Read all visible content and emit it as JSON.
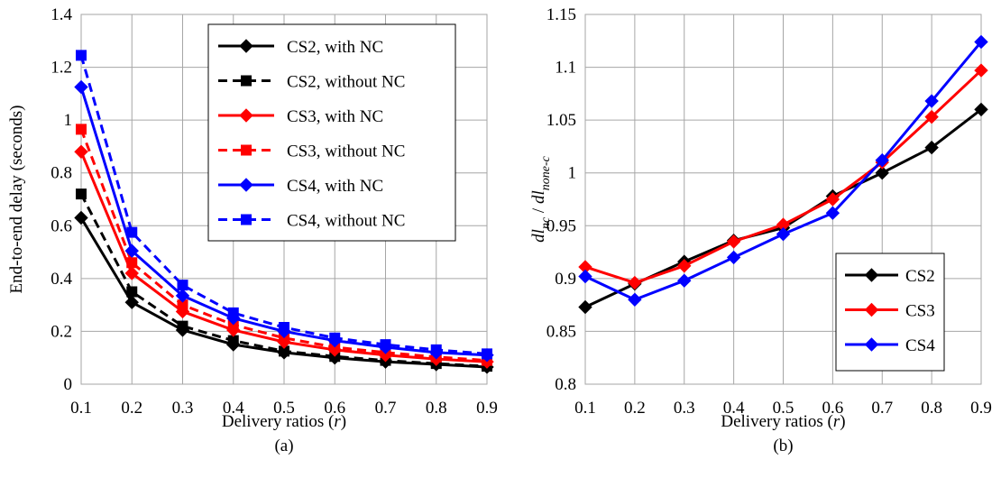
{
  "figure": {
    "panels": [
      "(a)",
      "(b)"
    ]
  },
  "chart_data": [
    {
      "type": "line",
      "panel_label": "(a)",
      "xlabel": "Delivery ratios (r)",
      "xlabel_parts": [
        "Delivery ratios (",
        "r",
        ")"
      ],
      "ylabel": "End-to-end delay (seconds)",
      "x": [
        0.1,
        0.2,
        0.3,
        0.4,
        0.5,
        0.6,
        0.7,
        0.8,
        0.9
      ],
      "x_tick_labels": [
        "0.1",
        "0.2",
        "0.3",
        "0.4",
        "0.5",
        "0.6",
        "0.7",
        "0.8",
        "0.9"
      ],
      "ylim": [
        0,
        1.4
      ],
      "y_ticks": [
        0,
        0.2,
        0.4,
        0.6,
        0.8,
        1,
        1.2,
        1.4
      ],
      "y_tick_labels": [
        "0",
        "0.2",
        "0.4",
        "0.6",
        "0.8",
        "1",
        "1.2",
        "1.4"
      ],
      "grid": true,
      "legend_position": "top-right",
      "series": [
        {
          "name": "CS2, with NC",
          "color": "#000000",
          "dash": "solid",
          "marker": "diamond",
          "values": [
            0.63,
            0.31,
            0.205,
            0.15,
            0.12,
            0.1,
            0.085,
            0.075,
            0.065
          ]
        },
        {
          "name": "CS2, without NC",
          "color": "#000000",
          "dash": "dashed",
          "marker": "square",
          "values": [
            0.72,
            0.35,
            0.22,
            0.165,
            0.125,
            0.105,
            0.09,
            0.078,
            0.068
          ]
        },
        {
          "name": "CS3, with NC",
          "color": "#ff0000",
          "dash": "solid",
          "marker": "diamond",
          "values": [
            0.88,
            0.42,
            0.275,
            0.205,
            0.16,
            0.13,
            0.11,
            0.095,
            0.085
          ]
        },
        {
          "name": "CS3, without NC",
          "color": "#ff0000",
          "dash": "dashed",
          "marker": "square",
          "values": [
            0.965,
            0.46,
            0.3,
            0.225,
            0.175,
            0.14,
            0.12,
            0.103,
            0.09
          ]
        },
        {
          "name": "CS4, with NC",
          "color": "#0000ff",
          "dash": "solid",
          "marker": "diamond",
          "values": [
            1.125,
            0.505,
            0.335,
            0.25,
            0.2,
            0.165,
            0.14,
            0.12,
            0.11
          ]
        },
        {
          "name": "CS4, without NC",
          "color": "#0000ff",
          "dash": "dashed",
          "marker": "square",
          "values": [
            1.245,
            0.575,
            0.375,
            0.27,
            0.215,
            0.175,
            0.15,
            0.13,
            0.115
          ]
        }
      ]
    },
    {
      "type": "line",
      "panel_label": "(b)",
      "xlabel": "Delivery ratios (r)",
      "xlabel_parts": [
        "Delivery ratios (",
        "r",
        ")"
      ],
      "ylabel": "dl_nc / dl_none-c",
      "ylabel_parts": {
        "a": "dl",
        "a_sub": "nc",
        "sep": " / ",
        "b": "dl",
        "b_sub": "none-c"
      },
      "x": [
        0.1,
        0.2,
        0.3,
        0.4,
        0.5,
        0.6,
        0.7,
        0.8,
        0.9
      ],
      "x_tick_labels": [
        "0.1",
        "0.2",
        "0.3",
        "0.4",
        "0.5",
        "0.6",
        "0.7",
        "0.8",
        "0.9"
      ],
      "ylim": [
        0.8,
        1.15
      ],
      "y_ticks": [
        0.8,
        0.85,
        0.9,
        0.95,
        1,
        1.05,
        1.1,
        1.15
      ],
      "y_tick_labels": [
        "0.8",
        "0.85",
        "0.9",
        "0.95",
        "1",
        "1.05",
        "1.1",
        "1.15"
      ],
      "grid": true,
      "legend_position": "bottom-right",
      "series": [
        {
          "name": "CS2",
          "color": "#000000",
          "dash": "solid",
          "marker": "diamond",
          "values": [
            0.873,
            0.895,
            0.916,
            0.936,
            0.948,
            0.978,
            1.0,
            1.024,
            1.06
          ]
        },
        {
          "name": "CS3",
          "color": "#ff0000",
          "dash": "solid",
          "marker": "diamond",
          "values": [
            0.911,
            0.896,
            0.912,
            0.935,
            0.951,
            0.975,
            1.01,
            1.053,
            1.097
          ]
        },
        {
          "name": "CS4",
          "color": "#0000ff",
          "dash": "solid",
          "marker": "diamond",
          "values": [
            0.902,
            0.88,
            0.898,
            0.92,
            0.942,
            0.962,
            1.012,
            1.068,
            1.124
          ]
        }
      ]
    }
  ]
}
